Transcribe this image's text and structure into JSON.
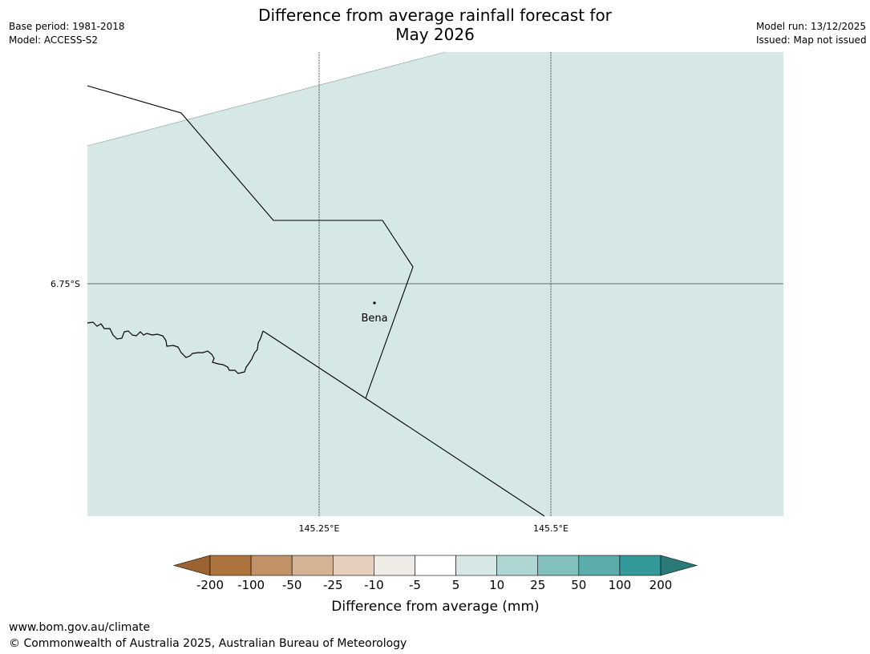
{
  "title_line1": "Difference from average rainfall forecast for",
  "title_line2": "May 2026",
  "base_period": "Base period: 1981-2018",
  "model": "Model: ACCESS-S2",
  "model_run": "Model run: 13/12/2025",
  "issued": "Issued: Map not issued",
  "map": {
    "lat_label": "6.75°S",
    "lon_labels": [
      "145.25°E",
      "145.5°E"
    ],
    "place": "Bena",
    "fill_color": "#d5e8e6"
  },
  "legend": {
    "title": "Difference from average (mm)",
    "ticks": [
      "-200",
      "-100",
      "-50",
      "-25",
      "-10",
      "-5",
      "5",
      "10",
      "25",
      "50",
      "100",
      "200"
    ],
    "colors": [
      "#9c6330",
      "#ae743d",
      "#c19267",
      "#d4b293",
      "#e6d0bd",
      "#efebe7",
      "#ffffff",
      "#d5e8e6",
      "#aed6d5",
      "#83c0bd",
      "#5cacab",
      "#33999a",
      "#2a7a7a"
    ]
  },
  "footer_url": "www.bom.gov.au/climate",
  "footer_copyright": "© Commonwealth of Australia 2025, Australian Bureau of Meteorology"
}
